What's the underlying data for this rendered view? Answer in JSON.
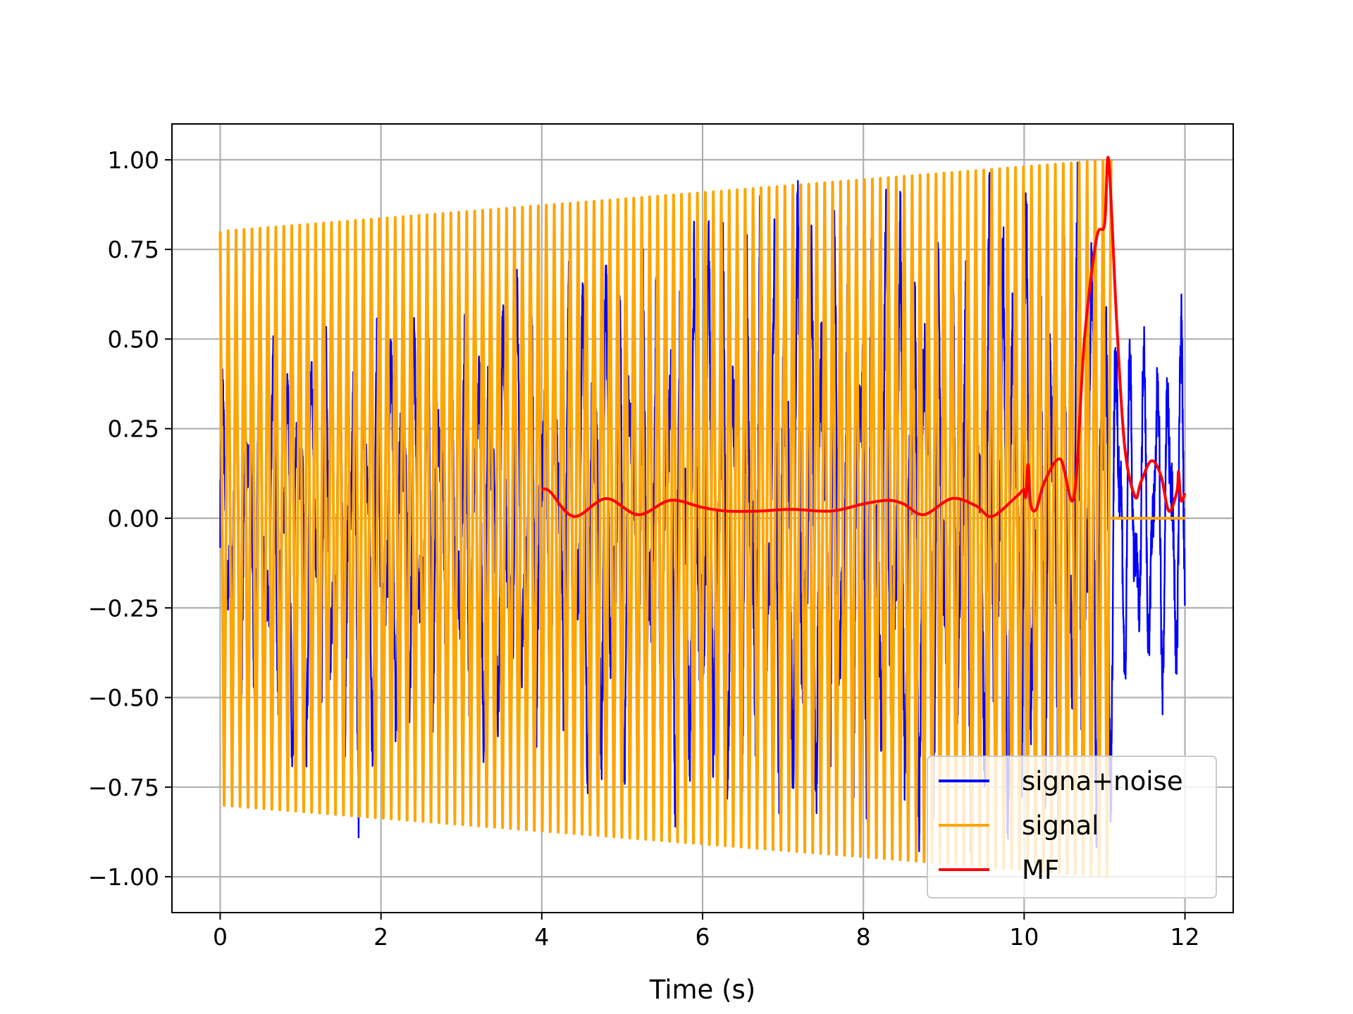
{
  "chart_data": {
    "type": "line",
    "title": "",
    "xlabel": "Time (s)",
    "ylabel": "",
    "xlim": [
      -0.6,
      12.6
    ],
    "ylim": [
      -1.1,
      1.1
    ],
    "x_ticks": [
      0,
      2,
      4,
      6,
      8,
      10,
      12
    ],
    "x_tick_labels": [
      "0",
      "2",
      "4",
      "6",
      "8",
      "10",
      "12"
    ],
    "y_ticks": [
      1.0,
      0.75,
      0.5,
      0.25,
      0.0,
      -0.25,
      -0.5,
      -0.75,
      -1.0
    ],
    "y_tick_labels": [
      "1.00",
      "0.75",
      "0.50",
      "0.25",
      "0.00",
      "−0.25",
      "−0.50",
      "−0.75",
      "−1.00"
    ],
    "grid": true,
    "legend_position": "bottom-right",
    "series": [
      {
        "name": "signa+noise",
        "color": "#0000ff",
        "kind": "noisy-oscillation",
        "x_range": [
          0,
          12
        ],
        "envelope": {
          "x": [
            0,
            1.75,
            2.3,
            6.1,
            6.25,
            11.0,
            11.3,
            12.0
          ],
          "upper": [
            0.47,
            0.62,
            0.6,
            0.88,
            1.0,
            1.0,
            0.58,
            0.66
          ],
          "lower": [
            -0.55,
            -0.9,
            -0.62,
            -0.95,
            -0.88,
            -1.0,
            -0.5,
            -0.59
          ]
        }
      },
      {
        "name": "signal",
        "color": "#ffa500",
        "kind": "linear-chirp",
        "x_range": [
          0,
          11.08
        ],
        "amplitude_start": 0.8,
        "amplitude_end": 1.0,
        "cycles": 112,
        "after_end_value": 0.0,
        "after_end_range": [
          11.08,
          12
        ]
      },
      {
        "name": "MF",
        "color": "#ff0000",
        "kind": "matched-filter",
        "x": [
          4.0,
          4.1,
          4.4,
          4.8,
          5.2,
          5.6,
          6.0,
          6.3,
          6.7,
          7.1,
          7.6,
          8.0,
          8.3,
          8.5,
          8.75,
          9.1,
          9.4,
          9.6,
          9.9,
          10.0,
          10.02,
          10.05,
          10.08,
          10.15,
          10.25,
          10.45,
          10.62,
          10.75,
          10.9,
          11.0,
          11.05,
          11.15,
          11.25,
          11.38,
          11.45,
          11.58,
          11.7,
          11.8,
          11.9,
          11.92,
          11.95,
          12.0
        ],
        "y": [
          0.08,
          0.075,
          0.005,
          0.055,
          0.01,
          0.05,
          0.03,
          0.02,
          0.02,
          0.025,
          0.02,
          0.04,
          0.05,
          0.04,
          0.01,
          0.055,
          0.035,
          0.005,
          0.06,
          0.08,
          0.06,
          0.15,
          0.04,
          0.025,
          0.1,
          0.165,
          0.06,
          0.5,
          0.78,
          0.82,
          1.0,
          0.55,
          0.2,
          0.06,
          0.1,
          0.16,
          0.12,
          0.02,
          0.075,
          0.13,
          0.05,
          0.07
        ]
      }
    ]
  }
}
